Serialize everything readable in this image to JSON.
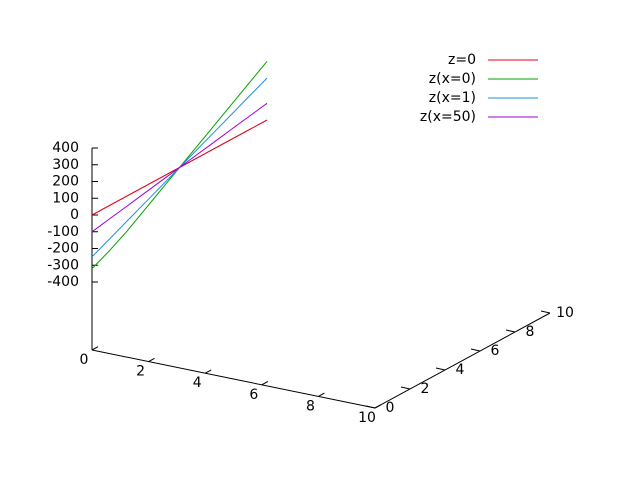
{
  "chart_data": {
    "type": "line3d",
    "y": [
      0,
      1,
      2,
      3,
      4,
      5,
      6,
      7,
      8,
      9,
      10
    ],
    "series": [
      {
        "name": "z=0",
        "color": "#e0001a",
        "values": [
          0,
          0,
          0,
          0,
          0,
          0,
          0,
          0,
          0,
          0,
          0
        ]
      },
      {
        "name": "z(x=0)",
        "color": "#00a000",
        "values": [
          -320,
          -270,
          -210,
          -140,
          -70,
          0,
          70,
          140,
          210,
          280,
          350
        ]
      },
      {
        "name": "z(x=1)",
        "color": "#1e90e0",
        "values": [
          -250,
          -200,
          -150,
          -100,
          -50,
          0,
          50,
          100,
          150,
          200,
          250
        ]
      },
      {
        "name": "z(x=50)",
        "color": "#a000d0",
        "values": [
          -100,
          -80,
          -60,
          -40,
          -20,
          0,
          20,
          40,
          60,
          80,
          100
        ]
      }
    ],
    "xlim": [
      0,
      10
    ],
    "xticks": [
      0,
      2,
      4,
      6,
      8,
      10
    ],
    "ylim": [
      0,
      10
    ],
    "yticks": [
      0,
      2,
      4,
      6,
      8,
      10
    ],
    "zlim": [
      -400,
      400
    ],
    "zticks": [
      -400,
      -300,
      -200,
      -100,
      0,
      100,
      200,
      300,
      400
    ],
    "legend": "top-right"
  }
}
